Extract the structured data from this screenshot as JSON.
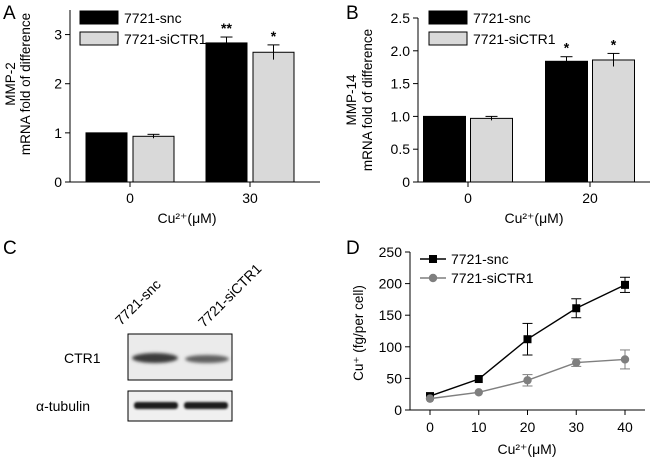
{
  "colors": {
    "snc": "#000000",
    "siCTR1": "#d9d9d9",
    "siCTR1_line": "#7f7f7f"
  },
  "panels": {
    "A": "A",
    "B": "B",
    "C": "C",
    "D": "D"
  },
  "chart_data": [
    {
      "panel": "A",
      "type": "bar",
      "ylabel_line1": "MMP-2",
      "ylabel_line2": "mRNA fold of difference",
      "xlabel": "Cu²⁺(μM)",
      "categories": [
        "0",
        "30"
      ],
      "ylim": [
        0,
        3.5
      ],
      "yticks": [
        "0",
        "1",
        "2",
        "3"
      ],
      "series": [
        {
          "name": "7721-snc",
          "values": [
            1.0,
            2.83
          ],
          "errors": [
            0,
            0.12
          ]
        },
        {
          "name": "7721-siCTR1",
          "values": [
            0.93,
            2.64
          ],
          "errors": [
            0.04,
            0.15
          ]
        }
      ],
      "significance": [
        {
          "category": 1,
          "series": 0,
          "label": "**"
        },
        {
          "category": 1,
          "series": 1,
          "label": "*"
        }
      ]
    },
    {
      "panel": "B",
      "type": "bar",
      "ylabel_line1": "MMP-14",
      "ylabel_line2": "mRNA fold of difference",
      "xlabel": "Cu²⁺(μM)",
      "categories": [
        "0",
        "20"
      ],
      "ylim": [
        0,
        2.5
      ],
      "yticks": [
        "0",
        "0.5",
        "1.0",
        "1.5",
        "2.0",
        "2.5"
      ],
      "series": [
        {
          "name": "7721-snc",
          "values": [
            1.0,
            1.84
          ],
          "errors": [
            0,
            0.07
          ]
        },
        {
          "name": "7721-siCTR1",
          "values": [
            0.97,
            1.86
          ],
          "errors": [
            0.03,
            0.1
          ]
        }
      ],
      "significance": [
        {
          "category": 1,
          "series": 0,
          "label": "*"
        },
        {
          "category": 1,
          "series": 1,
          "label": "*"
        }
      ]
    },
    {
      "panel": "D",
      "type": "line",
      "ylabel": "Cu⁺ (fg/per cell)",
      "xlabel": "Cu²⁺(μM)",
      "x": [
        0,
        10,
        20,
        30,
        40
      ],
      "xlim": [
        0,
        40
      ],
      "xticks": [
        "0",
        "10",
        "20",
        "30",
        "40"
      ],
      "ylim": [
        0,
        250
      ],
      "yticks": [
        "0",
        "50",
        "100",
        "150",
        "200",
        "250"
      ],
      "series": [
        {
          "name": "7721-snc",
          "values": [
            22,
            49,
            112,
            161,
            198
          ],
          "errors": [
            0,
            0,
            25,
            15,
            12
          ]
        },
        {
          "name": "7721-siCTR1",
          "values": [
            18,
            28,
            47,
            75,
            80
          ],
          "errors": [
            0,
            0,
            9,
            6,
            15
          ]
        }
      ]
    }
  ],
  "blot": {
    "lane_labels": [
      "7721-snc",
      "7721-siCTR1"
    ],
    "row_labels": [
      "CTR1",
      "α-tubulin"
    ]
  }
}
